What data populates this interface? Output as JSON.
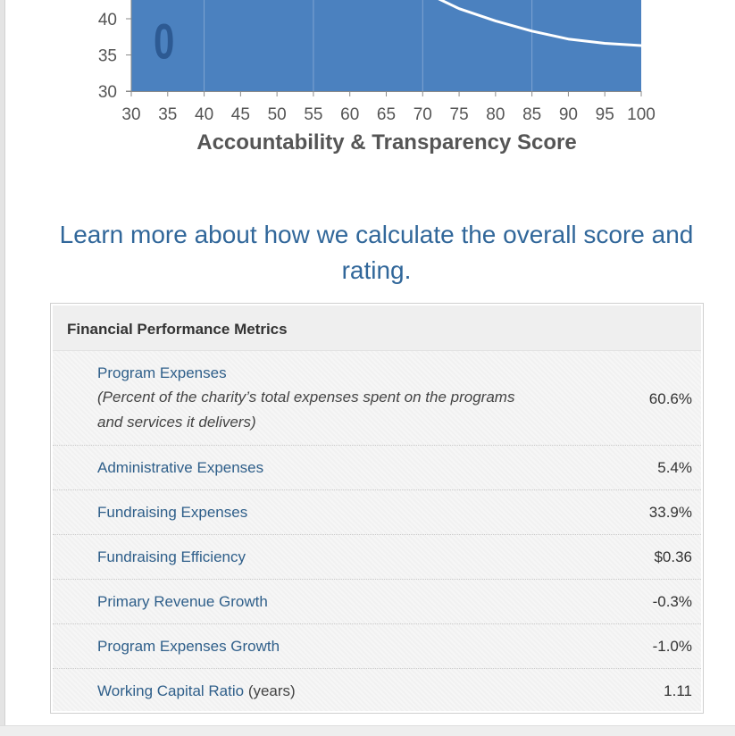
{
  "chart_data": {
    "type": "line",
    "xlabel": "Accountability & Transparency Score",
    "x_ticks": [
      30,
      35,
      40,
      45,
      50,
      55,
      60,
      65,
      70,
      75,
      80,
      85,
      90,
      95,
      100
    ],
    "y_ticks": [
      30,
      35,
      40
    ],
    "xlim": [
      30,
      100
    ],
    "y_visible_range": [
      30,
      43
    ],
    "background_color": "#4b81bf",
    "grid_color": "#7fa4d2",
    "curve_color": "#ffffff",
    "marker_label": "0",
    "marker_x": 34.5,
    "marker_y": 37,
    "curve": {
      "x": [
        70,
        75,
        80,
        85,
        90,
        95,
        100
      ],
      "y": [
        43.8,
        41.4,
        39.7,
        38.3,
        37.2,
        36.6,
        36.3
      ]
    }
  },
  "learn_more": {
    "text": "Learn more about how we calculate the overall score and rating."
  },
  "metrics": {
    "title": "Financial Performance Metrics",
    "rows": [
      {
        "label": "Program Expenses",
        "description": "(Percent of the charity’s total expenses spent on the programs and services it delivers)",
        "value": "60.6%"
      },
      {
        "label": "Administrative Expenses",
        "value": "5.4%"
      },
      {
        "label": "Fundraising Expenses",
        "value": "33.9%"
      },
      {
        "label": "Fundraising Efficiency",
        "value": "$0.36"
      },
      {
        "label": "Primary Revenue Growth",
        "value": "-0.3%"
      },
      {
        "label": "Program Expenses Growth",
        "value": "-1.0%"
      },
      {
        "label": "Working Capital Ratio",
        "unit": " (years)",
        "value": "1.11"
      }
    ]
  }
}
